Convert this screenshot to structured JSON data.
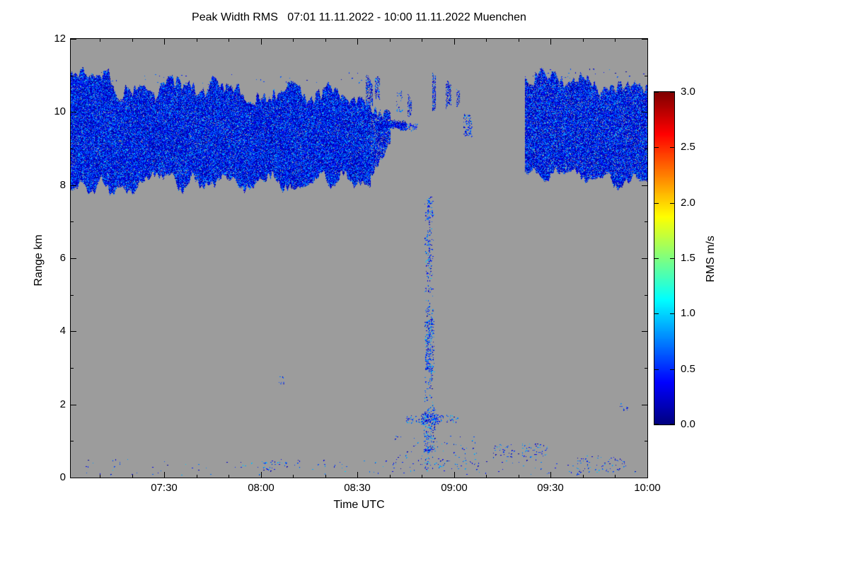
{
  "chart_data": {
    "type": "heatmap",
    "title": "Peak Width RMS   07:01 11.11.2022 - 10:00 11.11.2022 Muenchen",
    "xlabel": "Time UTC",
    "ylabel": "Range km",
    "x_start_label": "07:01",
    "x_end_label": "10:00",
    "x_total_minutes": 179,
    "x_ticks": [
      {
        "minute": 29,
        "label": "07:30"
      },
      {
        "minute": 59,
        "label": "08:00"
      },
      {
        "minute": 89,
        "label": "08:30"
      },
      {
        "minute": 119,
        "label": "09:00"
      },
      {
        "minute": 149,
        "label": "09:30"
      },
      {
        "minute": 179,
        "label": "10:00"
      }
    ],
    "x_minor_minutes": [
      9,
      19,
      39,
      49,
      69,
      79,
      99,
      109,
      129,
      139,
      159,
      169
    ],
    "ylim": [
      0,
      12
    ],
    "y_ticks": [
      {
        "value": 0,
        "label": "0"
      },
      {
        "value": 2,
        "label": "2"
      },
      {
        "value": 4,
        "label": "4"
      },
      {
        "value": 6,
        "label": "6"
      },
      {
        "value": 8,
        "label": "8"
      },
      {
        "value": 10,
        "label": "10"
      },
      {
        "value": 12,
        "label": "12"
      }
    ],
    "y_minor": [
      1,
      3,
      5,
      7,
      9,
      11
    ],
    "colorbar": {
      "label": "RMS m/s",
      "min": 0,
      "max": 3,
      "colormap": "jet",
      "ticks": [
        {
          "value": 0.0,
          "label": "0.0"
        },
        {
          "value": 0.5,
          "label": "0.5"
        },
        {
          "value": 1.0,
          "label": "1.0"
        },
        {
          "value": 1.5,
          "label": "1.5"
        },
        {
          "value": 2.0,
          "label": "2.0"
        },
        {
          "value": 2.5,
          "label": "2.5"
        },
        {
          "value": 3.0,
          "label": "3.0"
        }
      ]
    },
    "no_data_color": "#9c9c9c",
    "value_range_observed": [
      0.0,
      0.5
    ],
    "regions": [
      {
        "kind": "cloud",
        "t0": 0,
        "t1": 93,
        "top0": 10.8,
        "top1": 10.5,
        "topAmp": 0.38,
        "bot0": 8.0,
        "bot1": 8.15,
        "botAmp": 0.28,
        "density": 0.95,
        "vmax": 0.3
      },
      {
        "kind": "cloud",
        "t0": 93,
        "t1": 99,
        "top0": 10.35,
        "top1": 9.85,
        "topAmp": 0.35,
        "bot0": 8.5,
        "bot1": 9.3,
        "botAmp": 0.3,
        "density": 0.85,
        "vmax": 0.3
      },
      {
        "kind": "cloud",
        "t0": 95,
        "t1": 104,
        "top0": 9.75,
        "top1": 9.68,
        "topAmp": 0.08,
        "bot0": 9.48,
        "bot1": 9.55,
        "botAmp": 0.07,
        "density": 0.95,
        "vmax": 0.28
      },
      {
        "kind": "scatter",
        "t0": 103,
        "t1": 107.5,
        "z0": 9.5,
        "z1": 9.7,
        "n": 45,
        "vmax": 0.25
      },
      {
        "kind": "cloud",
        "t0": 91.5,
        "t1": 93.5,
        "top0": 11.0,
        "top1": 10.85,
        "topAmp": 0.15,
        "bot0": 10.15,
        "bot1": 10.25,
        "botAmp": 0.15,
        "density": 0.55,
        "vmax": 0.3
      },
      {
        "kind": "cloud",
        "t0": 94.5,
        "t1": 95.8,
        "top0": 10.9,
        "top1": 10.8,
        "topAmp": 0.12,
        "bot0": 10.3,
        "bot1": 10.35,
        "botAmp": 0.1,
        "density": 0.5,
        "vmax": 0.3
      },
      {
        "kind": "scatter",
        "t0": 101,
        "t1": 103,
        "z0": 10.0,
        "z1": 10.6,
        "n": 25,
        "vmax": 0.28
      },
      {
        "kind": "cloud",
        "t0": 104.5,
        "t1": 105.6,
        "top0": 10.5,
        "top1": 10.45,
        "topAmp": 0.1,
        "bot0": 9.9,
        "bot1": 9.95,
        "botAmp": 0.1,
        "density": 0.5,
        "vmax": 0.28
      },
      {
        "kind": "cloud",
        "t0": 112.2,
        "t1": 113.2,
        "top0": 11.0,
        "top1": 10.9,
        "topAmp": 0.1,
        "bot0": 10.05,
        "bot1": 10.15,
        "botAmp": 0.1,
        "density": 0.5,
        "vmax": 0.28
      },
      {
        "kind": "cloud",
        "t0": 116.5,
        "t1": 118,
        "top0": 10.85,
        "top1": 10.75,
        "topAmp": 0.12,
        "bot0": 10.15,
        "bot1": 10.25,
        "botAmp": 0.12,
        "density": 0.5,
        "vmax": 0.28
      },
      {
        "kind": "cloud",
        "t0": 119.6,
        "t1": 120.6,
        "top0": 10.7,
        "top1": 10.6,
        "topAmp": 0.1,
        "bot0": 10.25,
        "bot1": 10.3,
        "botAmp": 0.1,
        "density": 0.45,
        "vmax": 0.28
      },
      {
        "kind": "scatter",
        "t0": 121.8,
        "t1": 124.4,
        "z0": 9.35,
        "z1": 9.95,
        "n": 80,
        "vmax": 0.28
      },
      {
        "kind": "cloud",
        "t0": 141,
        "t1": 179,
        "top0": 10.95,
        "top1": 10.85,
        "topAmp": 0.32,
        "bot0": 8.25,
        "bot1": 8.05,
        "botAmp": 0.25,
        "density": 0.92,
        "vmax": 0.3
      },
      {
        "kind": "scatter",
        "t0": 1,
        "t1": 92,
        "z0": 10.75,
        "z1": 11.1,
        "n": 40,
        "vmax": 0.25
      },
      {
        "kind": "scatter",
        "t0": 141,
        "t1": 178,
        "z0": 10.9,
        "z1": 11.2,
        "n": 30,
        "vmax": 0.25
      },
      {
        "kind": "scatter",
        "t0": 109.8,
        "t1": 112.4,
        "z0": 0.25,
        "z1": 7.7,
        "n": 330,
        "vmax": 0.3
      },
      {
        "kind": "scatter",
        "t0": 110,
        "t1": 112.6,
        "z0": 2.9,
        "z1": 4.35,
        "n": 170,
        "vmax": 0.3
      },
      {
        "kind": "scatter",
        "t0": 109.6,
        "t1": 113,
        "z0": 0.7,
        "z1": 1.95,
        "n": 150,
        "vmax": 0.3
      },
      {
        "kind": "scatter",
        "t0": 110.4,
        "t1": 111.8,
        "z0": 5.5,
        "z1": 7.6,
        "n": 70,
        "vmax": 0.28
      },
      {
        "kind": "scatter",
        "t0": 104,
        "t1": 120,
        "z0": 1.5,
        "z1": 1.72,
        "n": 90,
        "vmax": 0.3
      },
      {
        "kind": "scatter",
        "t0": 108.5,
        "t1": 114,
        "z0": 1.45,
        "z1": 1.75,
        "n": 90,
        "vmax": 0.3
      },
      {
        "kind": "scatter",
        "t0": 3,
        "t1": 176,
        "z0": 0.08,
        "z1": 0.5,
        "n": 130,
        "vmax": 0.3
      },
      {
        "kind": "scatter",
        "t0": 100,
        "t1": 126,
        "z0": 0.2,
        "z1": 1.15,
        "n": 90,
        "vmax": 0.3
      },
      {
        "kind": "scatter",
        "t0": 131,
        "t1": 148,
        "z0": 0.55,
        "z1": 0.95,
        "n": 80,
        "vmax": 0.3
      },
      {
        "kind": "scatter",
        "t0": 155,
        "t1": 172,
        "z0": 0.15,
        "z1": 0.6,
        "n": 60,
        "vmax": 0.3
      },
      {
        "kind": "scatter",
        "t0": 58,
        "t1": 70,
        "z0": 0.2,
        "z1": 0.45,
        "n": 25,
        "vmax": 0.3
      },
      {
        "kind": "scatter",
        "t0": 64.5,
        "t1": 66.5,
        "z0": 2.55,
        "z1": 2.8,
        "n": 8,
        "vmax": 0.25
      },
      {
        "kind": "scatter",
        "t0": 169,
        "t1": 173.5,
        "z0": 1.85,
        "z1": 2.05,
        "n": 10,
        "vmax": 0.25
      }
    ]
  }
}
